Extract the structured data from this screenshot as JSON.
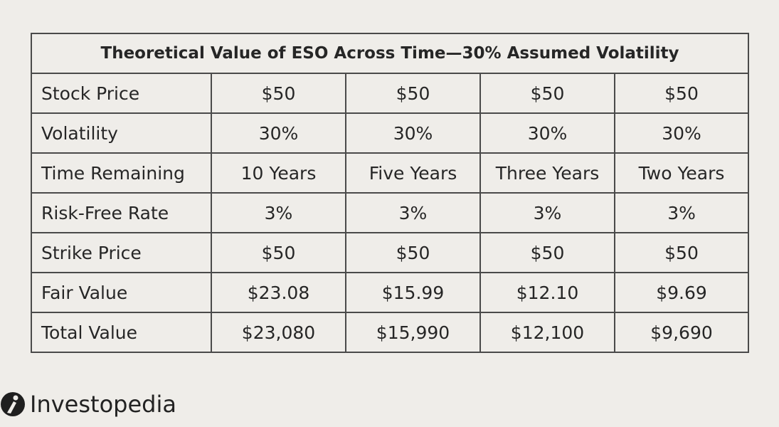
{
  "table": {
    "title": "Theoretical Value of ESO Across Time—30% Assumed Volatility",
    "rows": [
      [
        "Stock Price",
        "$50",
        "$50",
        "$50",
        "$50"
      ],
      [
        "Volatility",
        "30%",
        "30%",
        "30%",
        "30%"
      ],
      [
        "Time Remaining",
        "10 Years",
        "Five Years",
        "Three Years",
        "Two Years"
      ],
      [
        "Risk-Free Rate",
        "3%",
        "3%",
        "3%",
        "3%"
      ],
      [
        "Strike Price",
        "$50",
        "$50",
        "$50",
        "$50"
      ],
      [
        "Fair Value",
        "$23.08",
        "$15.99",
        "$12.10",
        "$9.69"
      ],
      [
        "Total Value",
        "$23,080",
        "$15,990",
        "$12,100",
        "$9,690"
      ]
    ]
  },
  "footer": {
    "brand": "Investopedia"
  }
}
